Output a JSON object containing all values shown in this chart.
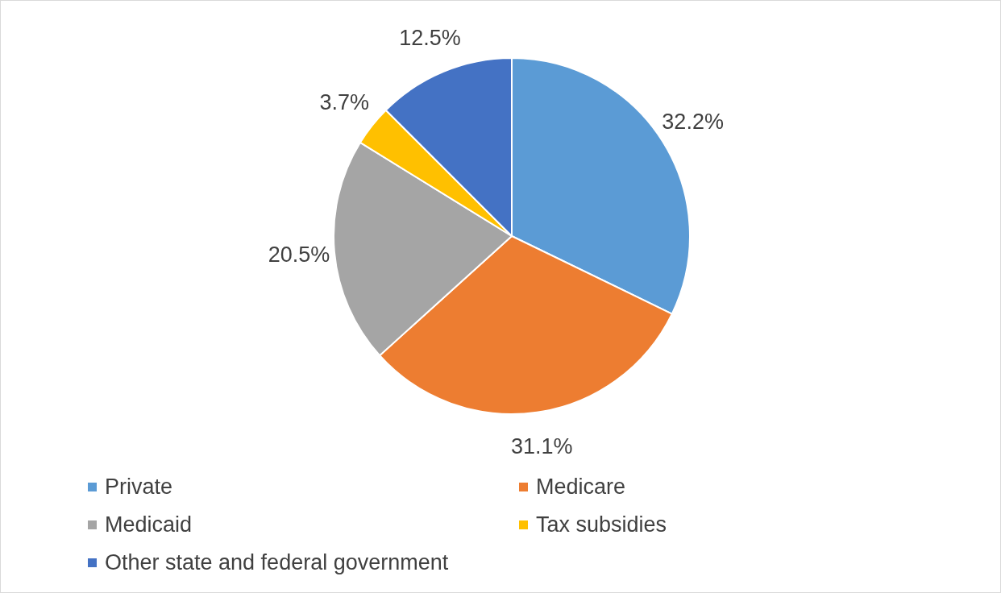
{
  "chart_data": {
    "type": "pie",
    "categories": [
      "Private",
      "Medicare",
      "Medicaid",
      "Tax subsidies",
      "Other state and federal government"
    ],
    "values": [
      32.2,
      31.1,
      20.5,
      3.7,
      12.5
    ],
    "colors": [
      "#5b9bd5",
      "#ed7d31",
      "#a5a5a5",
      "#ffc000",
      "#4472c4"
    ],
    "value_labels": [
      "32.2%",
      "31.1%",
      "20.5%",
      "3.7%",
      "12.5%"
    ],
    "legend": "bottom"
  }
}
